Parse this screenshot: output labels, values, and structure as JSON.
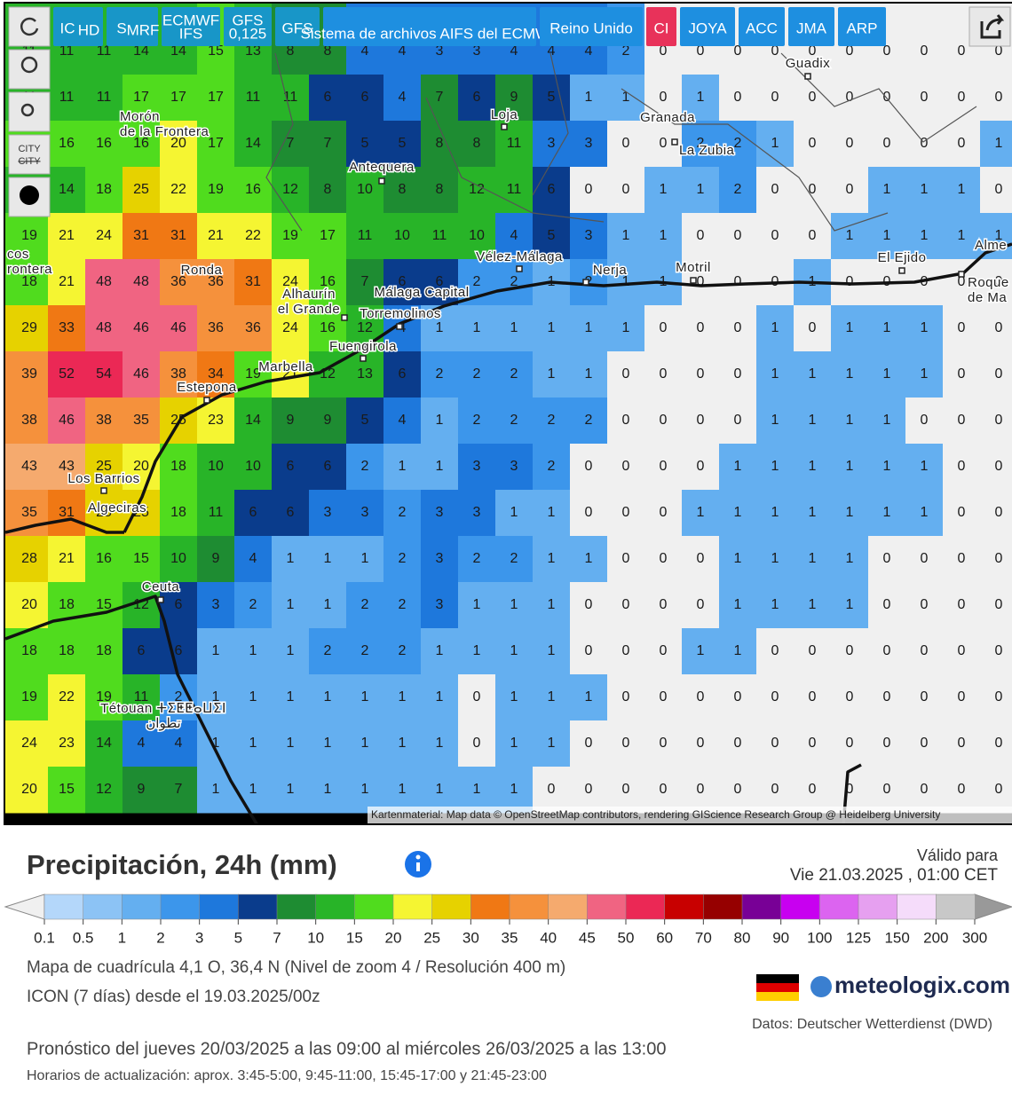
{
  "toolbar": {
    "models": [
      {
        "main": "IC",
        "sub": "HD"
      },
      {
        "main": "S",
        "sub": "MRF"
      },
      {
        "lines": [
          "ECMWF",
          "IFS"
        ]
      },
      {
        "lines": [
          "GFS",
          "0,125"
        ]
      },
      {
        "main": "GFS"
      },
      {
        "main": "Sistema de archivos AIFS del ECMWF"
      },
      {
        "main": "Reino Unido"
      },
      {
        "main": "CI"
      },
      {
        "main": "JOYA"
      },
      {
        "main": "ACC"
      },
      {
        "main": "JMA"
      },
      {
        "main": "ARP"
      }
    ],
    "city_toggle": [
      "CITY",
      "CITY"
    ]
  },
  "map": {
    "grid_values": [
      [
        11,
        11,
        11,
        14,
        14,
        15,
        13,
        8,
        8,
        4,
        4,
        3,
        3,
        4,
        4,
        4,
        2,
        0,
        0,
        0,
        0,
        0,
        0,
        0,
        0,
        0,
        0
      ],
      [
        11,
        11,
        11,
        17,
        17,
        17,
        11,
        11,
        6,
        6,
        4,
        7,
        6,
        9,
        5,
        1,
        1,
        0,
        1,
        0,
        0,
        0,
        0,
        0,
        0,
        0,
        0
      ],
      [
        16,
        16,
        16,
        16,
        20,
        17,
        14,
        7,
        7,
        5,
        5,
        8,
        8,
        11,
        3,
        3,
        0,
        0,
        2,
        2,
        1,
        0,
        0,
        0,
        0,
        0,
        1
      ],
      [
        14,
        14,
        18,
        25,
        22,
        19,
        16,
        12,
        8,
        10,
        8,
        8,
        12,
        11,
        6,
        0,
        0,
        1,
        1,
        2,
        0,
        0,
        0,
        1,
        1,
        1,
        0
      ],
      [
        19,
        21,
        24,
        31,
        31,
        21,
        22,
        19,
        17,
        11,
        10,
        11,
        10,
        4,
        5,
        3,
        1,
        1,
        0,
        0,
        0,
        0,
        1,
        1,
        1,
        1,
        1
      ],
      [
        18,
        21,
        48,
        48,
        36,
        36,
        31,
        24,
        16,
        7,
        6,
        6,
        2,
        2,
        1,
        2,
        1,
        1,
        0,
        0,
        0,
        1,
        0,
        0,
        0,
        0,
        0
      ],
      [
        29,
        33,
        48,
        46,
        46,
        36,
        36,
        24,
        16,
        12,
        4,
        1,
        1,
        1,
        1,
        1,
        1,
        0,
        0,
        0,
        1,
        0,
        1,
        1,
        1,
        0,
        0
      ],
      [
        39,
        52,
        54,
        46,
        38,
        34,
        19,
        21,
        12,
        13,
        6,
        2,
        2,
        2,
        1,
        1,
        0,
        0,
        0,
        0,
        1,
        1,
        1,
        1,
        1,
        0,
        0
      ],
      [
        38,
        46,
        38,
        35,
        25,
        23,
        14,
        9,
        9,
        5,
        4,
        1,
        2,
        2,
        2,
        2,
        0,
        0,
        0,
        0,
        1,
        1,
        1,
        1,
        0,
        0,
        0
      ],
      [
        43,
        43,
        25,
        20,
        18,
        10,
        10,
        6,
        6,
        2,
        1,
        1,
        3,
        3,
        2,
        0,
        0,
        0,
        0,
        1,
        1,
        1,
        1,
        1,
        1,
        0,
        0
      ],
      [
        35,
        31,
        25,
        25,
        18,
        11,
        6,
        6,
        3,
        3,
        2,
        3,
        3,
        1,
        1,
        0,
        0,
        0,
        1,
        1,
        1,
        1,
        1,
        1,
        1,
        0,
        0
      ],
      [
        28,
        21,
        16,
        15,
        10,
        9,
        4,
        1,
        1,
        1,
        2,
        3,
        2,
        2,
        1,
        1,
        0,
        0,
        0,
        1,
        1,
        1,
        1,
        0,
        0,
        0,
        0
      ],
      [
        20,
        18,
        15,
        12,
        6,
        3,
        2,
        1,
        1,
        2,
        2,
        3,
        1,
        1,
        1,
        0,
        0,
        0,
        0,
        1,
        1,
        1,
        1,
        0,
        0,
        0,
        0
      ],
      [
        18,
        18,
        18,
        6,
        6,
        1,
        1,
        1,
        2,
        2,
        2,
        1,
        1,
        1,
        1,
        0,
        0,
        0,
        1,
        1,
        0,
        0,
        0,
        0,
        0,
        0,
        0
      ],
      [
        19,
        22,
        19,
        11,
        2,
        1,
        1,
        1,
        1,
        1,
        1,
        1,
        0,
        1,
        1,
        1,
        0,
        0,
        0,
        0,
        0,
        0,
        0,
        0,
        0,
        0,
        0
      ],
      [
        24,
        23,
        14,
        4,
        4,
        1,
        1,
        1,
        1,
        1,
        1,
        1,
        0,
        1,
        1,
        0,
        0,
        0,
        0,
        0,
        0,
        0,
        0,
        0,
        0,
        0,
        0
      ],
      [
        20,
        15,
        12,
        9,
        7,
        1,
        1,
        1,
        1,
        1,
        1,
        1,
        1,
        1,
        0,
        0,
        0,
        0,
        0,
        0,
        0,
        0,
        0,
        0,
        0,
        0,
        0
      ]
    ],
    "places": [
      {
        "lines": [
          "Guadix"
        ]
      },
      {
        "lines": [
          "Granada"
        ]
      },
      {
        "lines": [
          "Loja"
        ]
      },
      {
        "lines": [
          "Morón",
          "de la Frontera"
        ]
      },
      {
        "lines": [
          "Antequera"
        ]
      },
      {
        "lines": [
          "La Zubia"
        ]
      },
      {
        "lines": [
          "Vélez-Málaga"
        ]
      },
      {
        "lines": [
          "Nerja"
        ]
      },
      {
        "lines": [
          "Motril"
        ]
      },
      {
        "lines": [
          "El Ejido"
        ]
      },
      {
        "lines": [
          "Ronda"
        ]
      },
      {
        "lines": [
          "Alhaurín",
          "el Grande"
        ]
      },
      {
        "lines": [
          "Málaga Capital"
        ]
      },
      {
        "lines": [
          "Torremolinos"
        ]
      },
      {
        "lines": [
          "Fuengirola"
        ]
      },
      {
        "lines": [
          "Marbella"
        ]
      },
      {
        "lines": [
          "Estepona"
        ]
      },
      {
        "lines": [
          "Los Barrios"
        ]
      },
      {
        "lines": [
          "Algeciras"
        ]
      },
      {
        "lines": [
          "Ceuta"
        ]
      },
      {
        "lines": [
          "Tétouan ⵜⵉⵟⵟⴰⵡⵉⵏ",
          "تطوان"
        ]
      },
      {
        "lines": [
          "Alme"
        ]
      },
      {
        "lines": [
          "Roque",
          "de Ma"
        ]
      },
      {
        "lines": [
          "cos",
          "rontera"
        ]
      }
    ],
    "attribution": "Kartenmaterial: Map data © OpenStreetMap contributors, rendering GIScience Research Group @ Heidelberg University"
  },
  "legend": {
    "ticks": [
      0.1,
      0.5,
      1,
      2,
      3,
      5,
      7,
      10,
      15,
      20,
      25,
      30,
      35,
      40,
      45,
      50,
      60,
      70,
      80,
      90,
      100,
      125,
      150,
      200,
      300
    ],
    "colors": [
      "#b4d7fa",
      "#8cc3f5",
      "#64aff0",
      "#3c96eb",
      "#1e78dc",
      "#0a3c8c",
      "#1e8c32",
      "#28b428",
      "#50dc1e",
      "#f5f532",
      "#e6d200",
      "#f07814",
      "#f5913c",
      "#f5aa6e",
      "#f06482",
      "#eb2855",
      "#c80000",
      "#960000",
      "#780096",
      "#c800f0",
      "#dc64f0",
      "#e6a0f0",
      "#f5dcfa",
      "#c8c8c8"
    ],
    "below_color": "#f0f0f0",
    "above_color": "#999999"
  },
  "footer": {
    "title": "Precipitación, 24h (mm)",
    "valid_label": "Válido para",
    "valid_time": "Vie 21.03.2025 , 01:00 CET",
    "grid_info": "Mapa de cuadrícula 4,1 O, 36,4 N (Nivel de zoom 4 / Resolución 400 m)",
    "model_info": "ICON (7 días) desde el 19.03.2025/00z",
    "logo": "meteologix.com",
    "source": "Datos: Deutscher Wetterdienst (DWD)",
    "forecast_range": "Pronóstico del jueves 20/03/2025 a las 09:00 al miércoles 26/03/2025 a las 13:00",
    "update_times": "Horarios de actualización: aprox. 3:45-5:00, 9:45-11:00, 15:45-17:00 y 21:45-23:00"
  }
}
